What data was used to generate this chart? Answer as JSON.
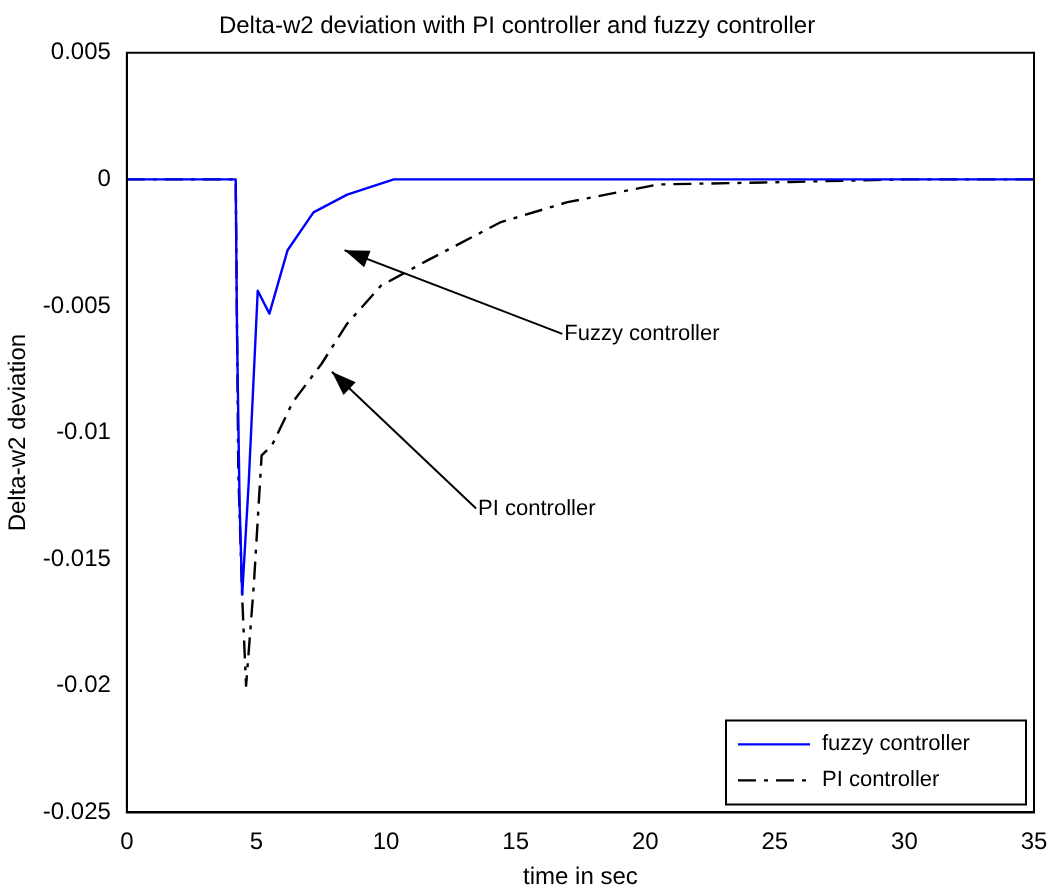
{
  "chart_data": {
    "type": "line",
    "title": "Delta-w2 deviation with PI controller and fuzzy controller",
    "xlabel": "time in sec",
    "ylabel": "Delta-w2 deviation",
    "xlim": [
      0,
      35
    ],
    "xticks": [
      0,
      5,
      10,
      15,
      20,
      25,
      30,
      35
    ],
    "ylim": [
      -0.025,
      0.005
    ],
    "yticks": [
      -0.025,
      -0.02,
      -0.015,
      -0.01,
      -0.005,
      0,
      0.005
    ],
    "grid": false,
    "legend": "bottom right",
    "marker": "none",
    "series": [
      {
        "name": "fuzzy controller",
        "color": "#0000ff",
        "line_style": "solid",
        "x": [
          0,
          2,
          4.2,
          4.25,
          4.35,
          4.45,
          4.7,
          5.05,
          5.5,
          6.2,
          7.2,
          8.5,
          10.3,
          15,
          20,
          25,
          30,
          35
        ],
        "values": [
          0,
          0,
          0,
          -0.006,
          -0.0128,
          -0.0164,
          -0.012,
          -0.0044,
          -0.0053,
          -0.0028,
          -0.0013,
          -0.0006,
          0,
          0,
          0,
          0,
          0,
          0
        ]
      },
      {
        "name": "PI controller",
        "color": "#000000",
        "line_style": "dashed",
        "x": [
          0,
          2,
          4.2,
          4.3,
          4.45,
          4.6,
          4.9,
          5.2,
          5.6,
          6.4,
          7.5,
          8.5,
          9.8,
          11.6,
          14.4,
          17,
          20.5,
          25.6,
          30,
          35
        ],
        "values": [
          0,
          0,
          0,
          -0.0116,
          -0.0165,
          -0.02,
          -0.016,
          -0.0109,
          -0.0105,
          -0.0088,
          -0.0073,
          -0.0057,
          -0.0042,
          -0.0032,
          -0.0017,
          -0.0009,
          -0.0002,
          -0.0001,
          0,
          0
        ]
      }
    ],
    "annotations": [
      "Fuzzy controller",
      "PI controller"
    ]
  }
}
